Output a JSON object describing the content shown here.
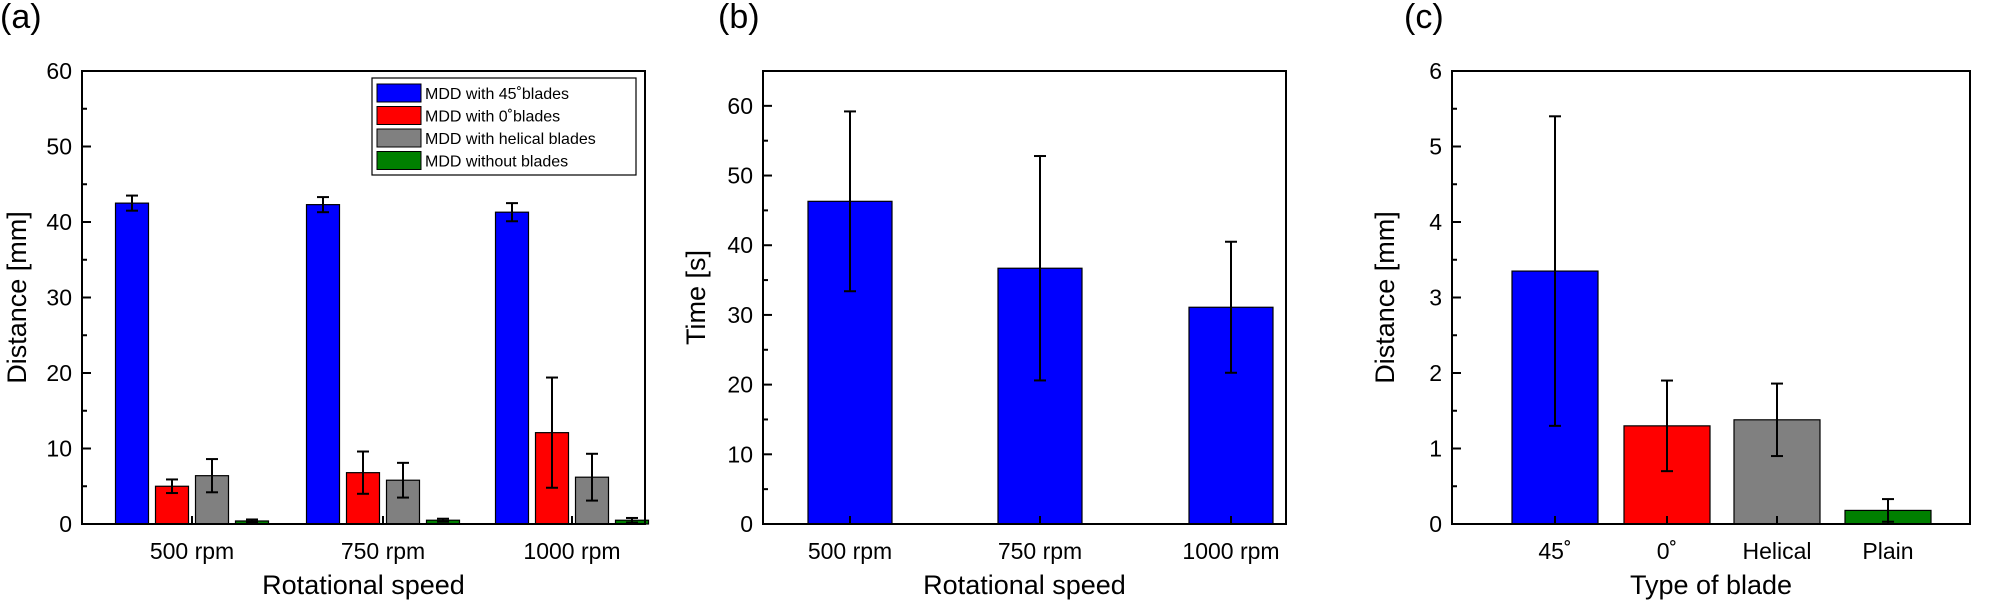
{
  "chart_data": [
    {
      "panel": "(a)",
      "type": "bar",
      "xlabel": "Rotational speed",
      "ylabel": "Distance [mm]",
      "ylim": [
        0,
        60
      ],
      "yticks": [
        0,
        10,
        20,
        30,
        40,
        50,
        60
      ],
      "categories": [
        "500 rpm",
        "750 rpm",
        "1000 rpm"
      ],
      "legend_position": "top-right",
      "series": [
        {
          "name": "MDD with 45˚blades",
          "color": "#0000ff",
          "values": [
            42.5,
            42.3,
            41.3
          ],
          "errors": [
            1.0,
            1.0,
            1.2
          ]
        },
        {
          "name": "MDD with 0˚blades",
          "color": "#ff0000",
          "values": [
            5.0,
            6.8,
            12.1
          ],
          "errors": [
            0.9,
            2.8,
            7.3
          ]
        },
        {
          "name": "MDD with helical blades",
          "color": "#808080",
          "values": [
            6.4,
            5.8,
            6.2
          ],
          "errors": [
            2.2,
            2.3,
            3.1
          ]
        },
        {
          "name": "MDD without blades",
          "color": "#008000",
          "values": [
            0.4,
            0.5,
            0.5
          ],
          "errors": [
            0.2,
            0.2,
            0.3
          ]
        }
      ]
    },
    {
      "panel": "(b)",
      "type": "bar",
      "xlabel": "Rotational speed",
      "ylabel": "Time [s]",
      "ylim": [
        0,
        65
      ],
      "yticks": [
        0,
        10,
        20,
        30,
        40,
        50,
        60
      ],
      "categories": [
        "500 rpm",
        "750 rpm",
        "1000 rpm"
      ],
      "series": [
        {
          "name": "Time",
          "color": "#0000ff",
          "values": [
            46.3,
            36.7,
            31.1
          ],
          "errors": [
            12.9,
            16.1,
            9.4
          ]
        }
      ]
    },
    {
      "panel": "(c)",
      "type": "bar",
      "xlabel": "Type of blade",
      "ylabel": "Distance [mm]",
      "ylim": [
        0,
        6
      ],
      "yticks": [
        0,
        1,
        2,
        3,
        4,
        5,
        6
      ],
      "categories": [
        "45˚",
        "0˚",
        "Helical",
        "Plain"
      ],
      "series": [
        {
          "name": "Distance",
          "colors": [
            "#0000ff",
            "#ff0000",
            "#808080",
            "#008000"
          ],
          "values": [
            3.35,
            1.3,
            1.38,
            0.18
          ],
          "errors": [
            2.05,
            0.6,
            0.48,
            0.15
          ]
        }
      ]
    }
  ]
}
